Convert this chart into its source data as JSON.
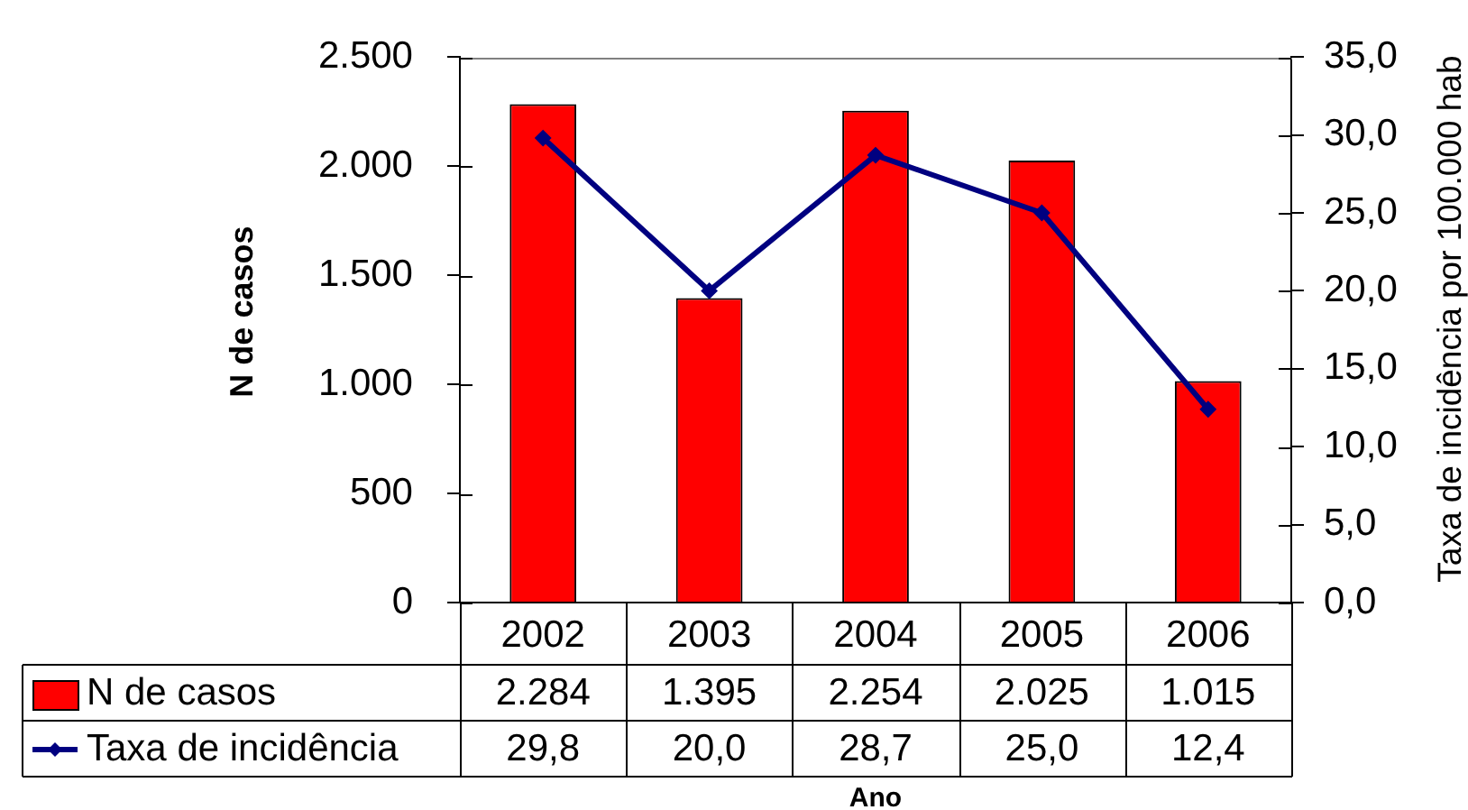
{
  "chart_data": {
    "type": "bar",
    "categories": [
      "2002",
      "2003",
      "2004",
      "2005",
      "2006"
    ],
    "xlabel": "Ano",
    "ylabel": "N de casos",
    "y2label": "Taxa de incidência por 100.000 hab",
    "series": [
      {
        "name": "N de casos",
        "type": "bar",
        "color": "#ff0000",
        "values": [
          2284,
          1395,
          2254,
          2025,
          1015
        ],
        "value_labels": [
          "2.284",
          "1.395",
          "2.254",
          "2.025",
          "1.015"
        ]
      },
      {
        "name": "Taxa de incidência",
        "type": "line",
        "axis": "y2",
        "color": "#000080",
        "marker": "diamond",
        "line_style": "solid",
        "values": [
          29.8,
          20.0,
          28.7,
          25.0,
          12.4
        ],
        "value_labels": [
          "29,8",
          "20,0",
          "28,7",
          "25,0",
          "12,4"
        ]
      }
    ],
    "ylim": [
      0,
      2500
    ],
    "yticks": [
      0,
      500,
      {
        "value": 1000,
        "label": "1.000"
      },
      {
        "value": 1500,
        "label": "1.500"
      },
      {
        "value": 2000,
        "label": "2.000"
      },
      {
        "value": 2500,
        "label": "2.500"
      }
    ],
    "y2lim": [
      0,
      35
    ],
    "y2ticks": [
      {
        "value": 0,
        "label": "0,0"
      },
      {
        "value": 5,
        "label": "5,0"
      },
      {
        "value": 10,
        "label": "10,0"
      },
      {
        "value": 15,
        "label": "15,0"
      },
      {
        "value": 20,
        "label": "20,0"
      },
      {
        "value": 25,
        "label": "25,0"
      },
      {
        "value": 30,
        "label": "30,0"
      },
      {
        "value": 35,
        "label": "35,0"
      }
    ],
    "grid": false,
    "legend": "bottom"
  }
}
